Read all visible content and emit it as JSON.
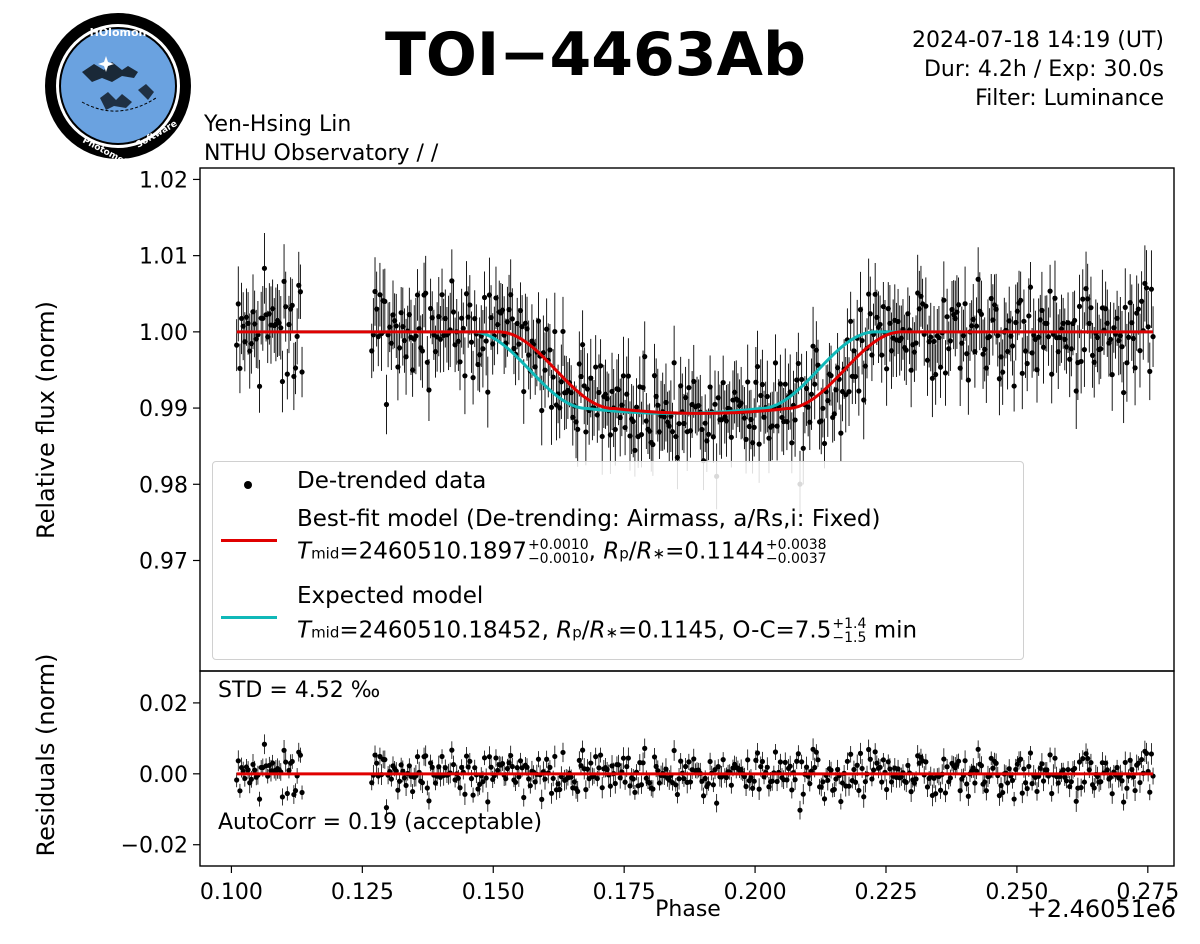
{
  "header": {
    "title": "TOI−4463Ab",
    "datetime": "2024-07-18 14:19 (UT)",
    "duration_exposure": "Dur: 4.2h / Exp: 30.0s",
    "filter": "Filter: Luminance",
    "observer": "Yen-Hsing Lin",
    "observatory": "NTHU Observatory /  /"
  },
  "logo": {
    "top_text": "HOlomon",
    "bottom_left": "Photometric",
    "bottom_right": "Software"
  },
  "colors": {
    "data": "#000000",
    "bestfit": "#e00000",
    "expected": "#10b8b8",
    "logo_ring": "#000000",
    "logo_sky": "#6aa2e0"
  },
  "legend": {
    "data_label": "De-trended data",
    "bestfit_label": "Best-fit model (De-trending: Airmass, a/Rs,i: Fixed)",
    "bestfit_tmid_value": "2460510.1897",
    "bestfit_tmid_plus": "+0.0010",
    "bestfit_tmid_minus": "−0.0010",
    "bestfit_rp_value": "0.1144",
    "bestfit_rp_plus": "+0.0038",
    "bestfit_rp_minus": "−0.0037",
    "expected_label": "Expected model",
    "expected_tmid_value": "2460510.18452",
    "expected_rp_value": "0.1145",
    "expected_oc_prefix": "O-C=7.5",
    "expected_oc_plus": "+1.4",
    "expected_oc_minus": "−1.5",
    "expected_oc_unit": "min"
  },
  "residual_panel": {
    "std_text": "STD = 4.52 ‰",
    "autocorr_text": "AutoCorr = 0.19 (acceptable)"
  },
  "chart_data": {
    "type": "scatter",
    "xlabel": "Phase",
    "x_offset_label": "+2.46051e6",
    "x_ticks": [
      "0.100",
      "0.125",
      "0.150",
      "0.175",
      "0.200",
      "0.225",
      "0.250",
      "0.275"
    ],
    "xlim": [
      0.094,
      0.28
    ],
    "main": {
      "ylabel": "Relative flux (norm)",
      "ylim": [
        0.9555,
        1.0215
      ],
      "y_ticks": [
        "1.02",
        "1.01",
        "1.00",
        "0.99",
        "0.98",
        "0.97"
      ],
      "data_x_range": [
        0.101,
        0.276
      ],
      "data_gap": [
        0.1135,
        0.1265
      ],
      "data_point_count": 520,
      "typical_error": 0.004,
      "bestfit_model": {
        "tmid": 0.1897,
        "depth": 0.0107,
        "ingress_start": 0.151,
        "ingress_end": 0.173,
        "egress_start": 0.206,
        "egress_end": 0.228,
        "baseline": 1.0
      },
      "expected_model": {
        "tmid": 0.18452,
        "depth": 0.0107,
        "ingress_start": 0.146,
        "ingress_end": 0.168,
        "egress_start": 0.201,
        "egress_end": 0.223,
        "baseline": 1.0
      }
    },
    "residuals": {
      "ylabel": "Residuals (norm)",
      "ylim": [
        -0.026,
        0.029
      ],
      "y_ticks": [
        "0.02",
        "0.00",
        "−0.02"
      ],
      "std": 0.00452
    }
  }
}
